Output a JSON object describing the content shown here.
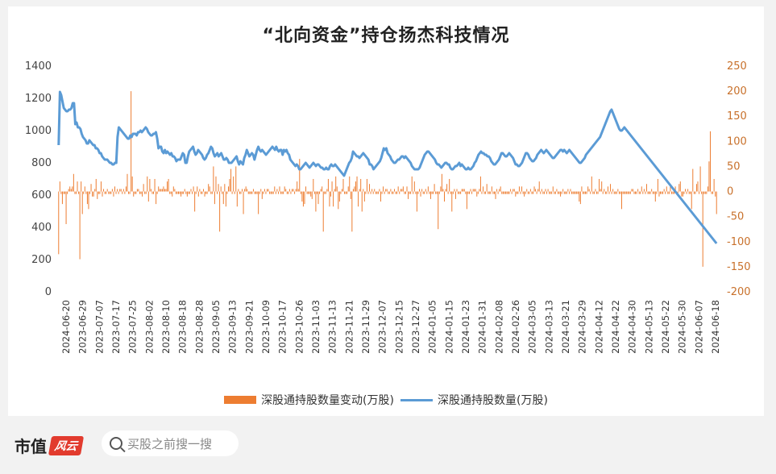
{
  "chart_data": {
    "type": "bar+line",
    "title": "“北向资金”持仓扬杰科技情况",
    "x_ticks": [
      "2024-06-20",
      "2023-06-29",
      "2023-07-07",
      "2023-07-17",
      "2023-07-25",
      "2023-08-02",
      "2023-08-10",
      "2023-08-18",
      "2023-08-28",
      "2023-09-05",
      "2023-09-13",
      "2023-09-21",
      "2023-10-09",
      "2023-10-17",
      "2023-10-26",
      "2023-11-03",
      "2023-11-13",
      "2023-11-21",
      "2023-11-29",
      "2023-12-07",
      "2023-12-15",
      "2023-12-27",
      "2024-01-05",
      "2024-01-15",
      "2024-01-23",
      "2024-01-31",
      "2024-02-08",
      "2024-02-26",
      "2024-03-05",
      "2024-03-13",
      "2024-03-21",
      "2024-03-29",
      "2024-04-12",
      "2024-04-22",
      "2024-04-30",
      "2024-05-13",
      "2024-05-22",
      "2024-05-30",
      "2024-06-07",
      "2024-06-18"
    ],
    "y_left": {
      "ticks": [
        "0",
        "200",
        "400",
        "600",
        "800",
        "1000",
        "1200",
        "1400"
      ],
      "ylim": [
        0,
        1400
      ]
    },
    "y_right": {
      "ticks": [
        "-200",
        "-150",
        "-100",
        "-50",
        "0",
        "50",
        "100",
        "150",
        "200",
        "250"
      ],
      "ylim": [
        -200,
        250
      ]
    },
    "series": [
      {
        "name": "深股通持股数量变动(万股)",
        "type": "bar",
        "axis": "right",
        "color": "#ed7d31",
        "values": [
          -125,
          20,
          -5,
          -25,
          -5,
          -5,
          -65,
          -5,
          5,
          10,
          5,
          10,
          35,
          -5,
          -5,
          20,
          -5,
          -135,
          20,
          -45,
          -5,
          10,
          -5,
          -25,
          -35,
          -5,
          15,
          -10,
          -10,
          5,
          25,
          -15,
          -5,
          -5,
          20,
          -10,
          5,
          -5,
          -5,
          5,
          -5,
          -5,
          -5,
          5,
          -10,
          10,
          -5,
          5,
          -5,
          5,
          5,
          -5,
          5,
          -5,
          10,
          35,
          -5,
          -5,
          200,
          30,
          -10,
          -5,
          -5,
          5,
          5,
          -5,
          -5,
          -10,
          15,
          -5,
          -5,
          30,
          -20,
          25,
          5,
          -5,
          -5,
          25,
          -25,
          -5,
          10,
          5,
          5,
          5,
          10,
          5,
          5,
          20,
          25,
          -5,
          -5,
          -10,
          10,
          5,
          -5,
          -5,
          -5,
          -5,
          -10,
          -5,
          -5,
          5,
          -5,
          -10,
          -5,
          -5,
          5,
          -5,
          10,
          -40,
          -5,
          10,
          -10,
          5,
          -5,
          -5,
          5,
          -10,
          -5,
          -5,
          15,
          10,
          -5,
          -5,
          50,
          -25,
          30,
          -5,
          15,
          -80,
          10,
          -5,
          -25,
          15,
          -30,
          -5,
          10,
          25,
          45,
          -5,
          30,
          -5,
          50,
          -30,
          5,
          -5,
          -5,
          5,
          -45,
          5,
          10,
          5,
          -5,
          -5,
          -5,
          -5,
          5,
          -5,
          -5,
          -5,
          -45,
          -5,
          5,
          -15,
          -5,
          5,
          -5,
          5,
          5,
          -5,
          -5,
          -5,
          -5,
          10,
          -5,
          5,
          -5,
          10,
          -5,
          -5,
          -5,
          10,
          5,
          -5,
          -5,
          5,
          -5,
          5,
          5,
          -5,
          5,
          20,
          5,
          65,
          -5,
          -20,
          -30,
          -25,
          10,
          -5,
          -5,
          -5,
          -10,
          -15,
          25,
          -5,
          -40,
          -5,
          -25,
          -5,
          5,
          10,
          -80,
          -5,
          -5,
          5,
          25,
          -30,
          -10,
          20,
          -30,
          5,
          30,
          10,
          -35,
          -20,
          -5,
          5,
          25,
          -5,
          -5,
          -5,
          10,
          30,
          -15,
          -80,
          5,
          10,
          20,
          30,
          -30,
          5,
          25,
          -40,
          5,
          -20,
          -5,
          25,
          -5,
          15,
          -5,
          5,
          -5,
          5,
          -5,
          -5,
          -5,
          5,
          -20,
          -5,
          10,
          -5,
          5,
          5,
          -5,
          -5,
          5,
          -5,
          -5,
          5,
          -5,
          -5,
          10,
          -5,
          5,
          5,
          10,
          -5,
          -5,
          10,
          -15,
          -5,
          -5,
          30,
          -5,
          20,
          -5,
          -40,
          -5,
          5,
          -10,
          5,
          -5,
          -5,
          5,
          -5,
          10,
          -5,
          -15,
          -5,
          -5,
          15,
          -5,
          -5,
          -75,
          -5,
          10,
          35,
          5,
          -20,
          5,
          15,
          -5,
          25,
          -5,
          -40,
          -5,
          5,
          -15,
          5,
          -5,
          -5,
          -5,
          5,
          5,
          5,
          -5,
          -35,
          -5,
          -5,
          5,
          -5,
          5,
          5,
          5,
          -10,
          -5,
          5,
          30,
          -5,
          10,
          -5,
          -5,
          15,
          -5,
          -5,
          -5,
          10,
          -5,
          -5,
          -15,
          5,
          -5,
          5,
          10,
          -5,
          -5,
          -5,
          -5,
          -5,
          -5,
          -5,
          5,
          -5,
          5,
          5,
          -10,
          -5,
          -5,
          10,
          -5,
          10,
          -5,
          -10,
          -5,
          5,
          -5,
          -5,
          5,
          -5,
          -5,
          10,
          5,
          -5,
          5,
          20,
          -5,
          5,
          -5,
          -5,
          5,
          -5,
          5,
          -5,
          -5,
          -5,
          10,
          -5,
          -5,
          5,
          -5,
          -5,
          -10,
          -5,
          5,
          -5,
          -5,
          -5,
          5,
          -5,
          5,
          -5,
          -5,
          -5,
          -5,
          -5,
          -5,
          -20,
          -25,
          10,
          -5,
          -5,
          -5,
          -5,
          10,
          5,
          -5,
          30,
          -5,
          -5,
          5,
          -5,
          -5,
          25,
          5,
          20,
          -5,
          5,
          -5,
          -5,
          10,
          -5,
          15,
          -5,
          5,
          -5,
          -5,
          -5,
          5,
          -5,
          -5,
          -35,
          -5,
          -5,
          -5,
          -5,
          -5,
          -5,
          -5,
          5,
          5,
          -5,
          -5,
          -5,
          5,
          -5,
          -5,
          10,
          -5,
          5,
          -5,
          15,
          -5,
          -5,
          -5,
          5,
          -5,
          -5,
          -20,
          -5,
          25,
          -10,
          -5,
          -5,
          -5,
          5,
          -5,
          10,
          -5,
          -5,
          15,
          -5,
          -5,
          -5,
          10,
          -5,
          -5,
          15,
          20,
          -10,
          -10,
          -5,
          5,
          -5,
          5,
          -5,
          -5,
          -35,
          45,
          -5,
          -5,
          15,
          20,
          -5,
          50,
          -5,
          -150,
          -5,
          -5,
          -5,
          10,
          60,
          120,
          -5,
          -5,
          25,
          -10,
          -45
        ]
      },
      {
        "name": "深股通持股数量(万股)",
        "type": "line",
        "axis": "left",
        "color": "#5b9bd5",
        "values": [
          910,
          1240,
          1220,
          1180,
          1140,
          1130,
          1120,
          1120,
          1130,
          1130,
          1140,
          1170,
          1170,
          1040,
          1050,
          1020,
          1020,
          1010,
          980,
          960,
          950,
          940,
          920,
          920,
          940,
          930,
          920,
          910,
          910,
          890,
          890,
          880,
          860,
          860,
          840,
          830,
          820,
          820,
          820,
          810,
          800,
          800,
          790,
          790,
          800,
          800,
          960,
          1020,
          1010,
          1000,
          990,
          980,
          970,
          960,
          950,
          950,
          970,
          960,
          980,
          980,
          980,
          970,
          990,
          990,
          1000,
          990,
          1000,
          1010,
          1020,
          1010,
          990,
          980,
          970,
          970,
          980,
          980,
          990,
          950,
          890,
          900,
          900,
          870,
          860,
          880,
          860,
          870,
          860,
          850,
          860,
          840,
          840,
          830,
          810,
          820,
          820,
          820,
          840,
          860,
          850,
          800,
          800,
          840,
          870,
          880,
          890,
          900,
          870,
          850,
          860,
          880,
          870,
          860,
          850,
          830,
          820,
          830,
          850,
          860,
          880,
          900,
          890,
          860,
          840,
          850,
          860,
          840,
          850,
          860,
          840,
          820,
          820,
          830,
          820,
          800,
          800,
          800,
          810,
          820,
          830,
          840,
          810,
          790,
          810,
          800,
          790,
          830,
          850,
          880,
          860,
          840,
          850,
          860,
          850,
          820,
          850,
          880,
          900,
          880,
          870,
          880,
          870,
          860,
          850,
          860,
          870,
          880,
          890,
          900,
          890,
          880,
          900,
          880,
          870,
          880,
          880,
          850,
          880,
          870,
          880,
          860,
          850,
          820,
          810,
          800,
          790,
          780,
          790,
          780,
          760,
          760,
          770,
          780,
          790,
          800,
          790,
          780,
          770,
          780,
          790,
          800,
          790,
          780,
          790,
          790,
          780,
          770,
          770,
          760,
          760,
          770,
          760,
          760,
          780,
          790,
          780,
          780,
          790,
          780,
          770,
          760,
          750,
          740,
          730,
          720,
          740,
          760,
          780,
          800,
          810,
          830,
          870,
          860,
          850,
          840,
          840,
          830,
          840,
          850,
          860,
          850,
          840,
          830,
          820,
          790,
          790,
          780,
          760,
          770,
          780,
          790,
          800,
          810,
          830,
          860,
          890,
          880,
          890,
          860,
          850,
          840,
          820,
          810,
          800,
          800,
          810,
          820,
          820,
          830,
          840,
          840,
          830,
          840,
          830,
          820,
          810,
          800,
          780,
          770,
          760,
          760,
          760,
          760,
          770,
          790,
          810,
          830,
          850,
          860,
          870,
          870,
          860,
          850,
          840,
          830,
          820,
          800,
          790,
          790,
          780,
          770,
          780,
          790,
          800,
          800,
          790,
          790,
          770,
          760,
          760,
          770,
          780,
          780,
          790,
          800,
          780,
          790,
          780,
          770,
          760,
          760,
          770,
          760,
          760,
          770,
          780,
          800,
          810,
          830,
          850,
          860,
          870,
          860,
          860,
          850,
          850,
          840,
          840,
          830,
          810,
          800,
          790,
          790,
          800,
          810,
          820,
          840,
          860,
          860,
          850,
          840,
          840,
          850,
          860,
          850,
          840,
          830,
          810,
          790,
          790,
          780,
          780,
          790,
          800,
          820,
          840,
          860,
          860,
          850,
          830,
          820,
          810,
          810,
          820,
          830,
          850,
          860,
          870,
          880,
          870,
          860,
          870,
          880,
          870,
          860,
          850,
          840,
          830,
          830,
          840,
          850,
          860,
          870,
          880,
          880,
          870,
          880,
          870,
          860,
          870,
          880,
          870,
          860,
          850,
          840,
          830,
          820,
          810,
          800,
          800,
          810,
          820,
          830,
          850,
          860,
          870,
          880,
          890,
          900,
          910,
          920,
          930,
          940,
          950,
          960,
          980,
          1000,
          1020,
          1040,
          1060,
          1080,
          1100,
          1120,
          1130,
          1110,
          1090,
          1070,
          1050,
          1030,
          1010,
          1000,
          1000,
          1010,
          1020,
          1010,
          1000,
          990,
          980,
          970,
          960,
          950,
          940,
          930,
          920,
          910,
          900,
          890,
          880,
          870,
          860,
          850,
          840,
          830,
          820,
          810,
          800,
          790,
          780,
          770,
          760,
          750,
          740,
          730,
          720,
          710,
          700,
          690,
          680,
          670,
          660,
          650,
          640,
          630,
          620,
          610,
          600,
          590,
          580,
          570,
          560,
          550,
          540,
          530,
          520,
          510,
          500,
          490,
          480,
          470,
          460,
          450,
          440,
          430,
          420,
          410,
          400,
          390,
          380,
          370,
          360,
          350,
          340,
          330,
          320,
          310,
          300
        ]
      }
    ],
    "grid": false,
    "legend_position": "bottom"
  },
  "legend": {
    "bar_label": "深股通持股数量变动(万股)",
    "line_label": "深股通持股数量(万股)"
  },
  "footer": {
    "brand_text": "市值",
    "brand_mark": "风云",
    "search_placeholder": "买股之前搜一搜"
  }
}
